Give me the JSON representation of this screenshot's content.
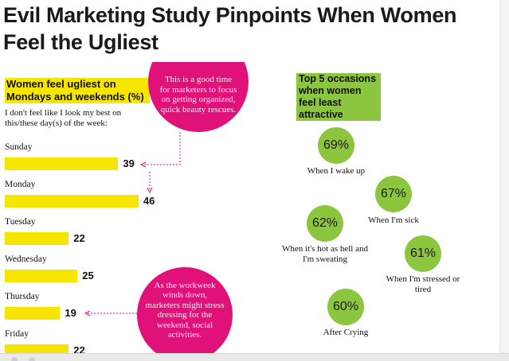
{
  "page": {
    "headline": "Evil Marketing Study Pinpoints When Women Feel the Ugliest"
  },
  "chart_data": [
    {
      "type": "bar",
      "orientation": "horizontal",
      "title": "Women feel ugliest on Mondays and weekends (%)",
      "subtitle": "I don't feel like I look my best on this/these day(s) of the week:",
      "categories": [
        "Sunday",
        "Monday",
        "Tuesday",
        "Wednesday",
        "Thursday",
        "Friday"
      ],
      "values": [
        39,
        46,
        22,
        25,
        19,
        22
      ],
      "value_labels": [
        "39",
        "46",
        "22",
        "25",
        "19",
        "22"
      ],
      "color": "#f5e500"
    },
    {
      "type": "table",
      "title": "Top 5 occasions when women feel least attractive",
      "items": [
        {
          "value": "69%",
          "label": "When I wake up"
        },
        {
          "value": "67%",
          "label": "When I'm sick"
        },
        {
          "value": "62%",
          "label": "When it's hot as hell and I'm sweating"
        },
        {
          "value": "61%",
          "label": "When I'm stressed or tired"
        },
        {
          "value": "60%",
          "label": "After Crying"
        }
      ],
      "color": "#8cc63f"
    }
  ],
  "callouts": {
    "top": "This is a good time for marketers to focus on getting organized, quick beauty rescues.",
    "bottom": "As the workweek winds down, marketers might stress dressing for the weekend, social activities."
  },
  "colors": {
    "bar_yellow": "#f5e500",
    "callout_magenta": "#e0127a",
    "occasion_green": "#8cc63f"
  }
}
